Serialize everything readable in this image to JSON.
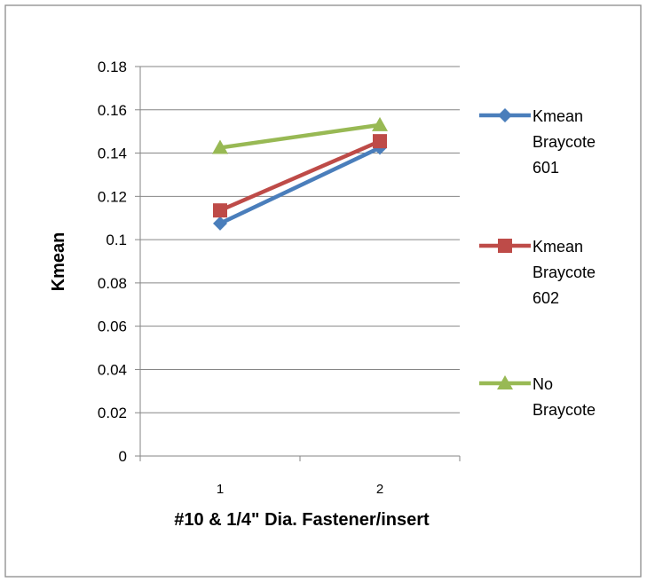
{
  "chart_data": {
    "type": "line",
    "title": "",
    "xlabel": "#10 & 1/4\" Dia. Fastener/insert",
    "ylabel": "Kmean",
    "categories": [
      "1",
      "2"
    ],
    "y_ticks": [
      "0",
      "0.02",
      "0.04",
      "0.06",
      "0.08",
      "0.1",
      "0.12",
      "0.14",
      "0.16",
      "0.18"
    ],
    "ylim": [
      0,
      0.18
    ],
    "grid": "horizontal",
    "legend_position": "right",
    "series": [
      {
        "name": "Kmean Braycote 601",
        "legend_lines": [
          "Kmean",
          "Braycote",
          "601"
        ],
        "values": [
          0.1075,
          0.1425
        ],
        "color": "#4a7ebb",
        "marker": "diamond"
      },
      {
        "name": "Kmean Braycote 602",
        "legend_lines": [
          "Kmean",
          "Braycote",
          "602"
        ],
        "values": [
          0.1135,
          0.1455
        ],
        "color": "#be4b48",
        "marker": "square"
      },
      {
        "name": "No Braycote",
        "legend_lines": [
          "No",
          "Braycote"
        ],
        "values": [
          0.1425,
          0.153
        ],
        "color": "#98b954",
        "marker": "triangle"
      }
    ]
  }
}
